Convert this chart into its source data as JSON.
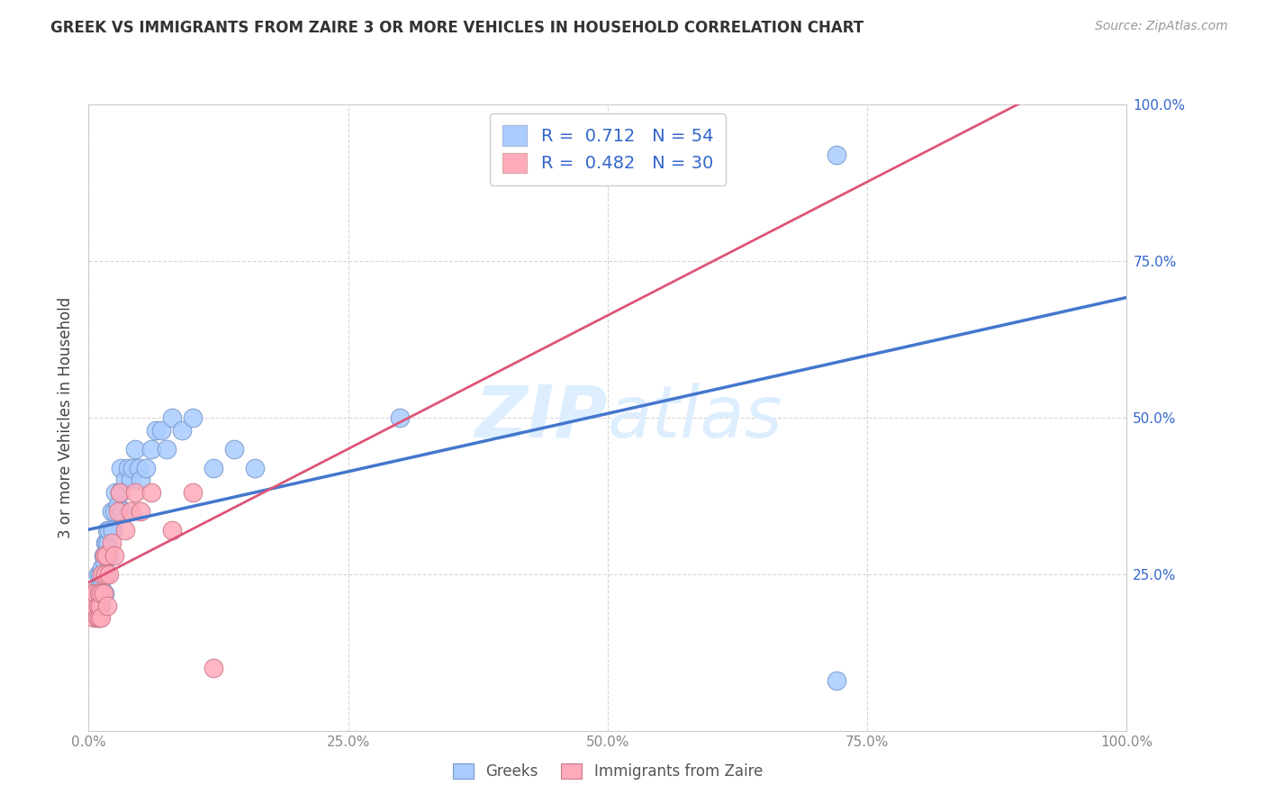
{
  "title": "GREEK VS IMMIGRANTS FROM ZAIRE 3 OR MORE VEHICLES IN HOUSEHOLD CORRELATION CHART",
  "source": "Source: ZipAtlas.com",
  "ylabel": "3 or more Vehicles in Household",
  "xmin": 0.0,
  "xmax": 1.0,
  "ymin": 0.0,
  "ymax": 1.0,
  "xticks": [
    0.0,
    0.25,
    0.5,
    0.75,
    1.0
  ],
  "yticks": [
    0.25,
    0.5,
    0.75,
    1.0
  ],
  "xticklabels": [
    "0.0%",
    "25.0%",
    "50.0%",
    "75.0%",
    "100.0%"
  ],
  "yticklabels_right": [
    "25.0%",
    "50.0%",
    "75.0%",
    "100.0%"
  ],
  "legend_labels_bottom": [
    "Greeks",
    "Immigrants from Zaire"
  ],
  "greek_color": "#aaccff",
  "greek_edge": "#7799cc",
  "zaire_color": "#ffaabb",
  "zaire_edge": "#cc7788",
  "greek_line_color": "#4477cc",
  "zaire_line_color": "#dd5577",
  "watermark_text": "ZIPatlas",
  "watermark_color": "#ddeeff",
  "grid_color": "#cccccc",
  "greek_scatter_x": [
    0.005,
    0.007,
    0.008,
    0.009,
    0.01,
    0.01,
    0.011,
    0.011,
    0.012,
    0.012,
    0.013,
    0.013,
    0.014,
    0.014,
    0.015,
    0.015,
    0.016,
    0.016,
    0.017,
    0.017,
    0.018,
    0.018,
    0.019,
    0.02,
    0.02,
    0.022,
    0.023,
    0.025,
    0.026,
    0.028,
    0.03,
    0.031,
    0.033,
    0.035,
    0.038,
    0.04,
    0.042,
    0.045,
    0.048,
    0.05,
    0.055,
    0.06,
    0.065,
    0.07,
    0.075,
    0.08,
    0.09,
    0.1,
    0.12,
    0.14,
    0.16,
    0.3,
    0.72,
    0.72
  ],
  "greek_scatter_y": [
    0.2,
    0.22,
    0.18,
    0.25,
    0.2,
    0.23,
    0.22,
    0.25,
    0.2,
    0.23,
    0.22,
    0.26,
    0.25,
    0.28,
    0.22,
    0.27,
    0.28,
    0.3,
    0.25,
    0.3,
    0.28,
    0.32,
    0.3,
    0.28,
    0.32,
    0.35,
    0.32,
    0.35,
    0.38,
    0.36,
    0.38,
    0.42,
    0.35,
    0.4,
    0.42,
    0.4,
    0.42,
    0.45,
    0.42,
    0.4,
    0.42,
    0.45,
    0.48,
    0.48,
    0.45,
    0.5,
    0.48,
    0.5,
    0.42,
    0.45,
    0.42,
    0.5,
    0.92,
    0.08
  ],
  "zaire_scatter_x": [
    0.003,
    0.005,
    0.006,
    0.007,
    0.008,
    0.009,
    0.01,
    0.01,
    0.011,
    0.012,
    0.012,
    0.013,
    0.014,
    0.015,
    0.016,
    0.017,
    0.018,
    0.02,
    0.022,
    0.025,
    0.028,
    0.03,
    0.035,
    0.04,
    0.045,
    0.05,
    0.06,
    0.08,
    0.1,
    0.12
  ],
  "zaire_scatter_y": [
    0.22,
    0.18,
    0.2,
    0.22,
    0.18,
    0.2,
    0.18,
    0.22,
    0.2,
    0.22,
    0.18,
    0.25,
    0.22,
    0.28,
    0.25,
    0.28,
    0.2,
    0.25,
    0.3,
    0.28,
    0.35,
    0.38,
    0.32,
    0.35,
    0.38,
    0.35,
    0.38,
    0.32,
    0.38,
    0.1
  ]
}
